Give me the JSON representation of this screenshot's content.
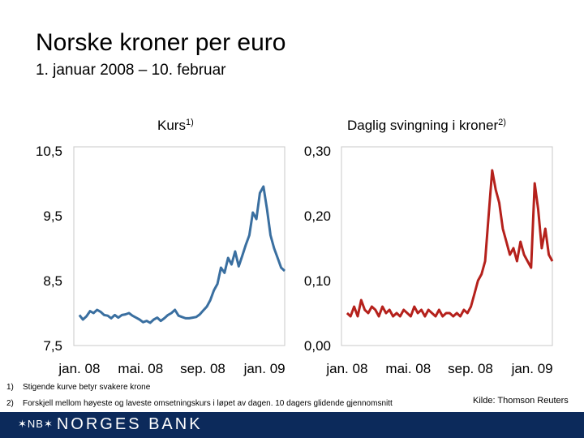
{
  "title": "Norske kroner per euro",
  "subtitle": "1. januar 2008 – 10. februar",
  "panels": {
    "left_title": "Kurs",
    "left_sup": "1)",
    "right_title": "Daglig svingning i kroner",
    "right_sup": "2)"
  },
  "footnotes": {
    "f1_num": "1)",
    "f1_text": "Stigende kurve betyr svakere krone",
    "f2_num": "2)",
    "f2_text": "Forskjell mellom høyeste og laveste omsetningskurs i løpet av dagen. 10 dagers glidende gjennomsnitt"
  },
  "source": "Kilde: Thomson Reuters",
  "logo": {
    "mark": "✶NB✶",
    "text": "NORGES BANK"
  },
  "colors": {
    "kurs": "#3a6fa0",
    "svingning": "#b5211c",
    "footer": "#0c2a5b",
    "grid": "#c8c8c8"
  },
  "chart_data": [
    {
      "type": "line",
      "title": "Kurs",
      "x_ticks": [
        "jan. 08",
        "mai. 08",
        "sep. 08",
        "jan. 09"
      ],
      "tick_dates": [
        "2008-01-01",
        "2008-05-01",
        "2008-09-01",
        "2009-01-01"
      ],
      "y_tick_labels": [
        "10,5",
        "9,5",
        "8,5",
        "7,5"
      ],
      "ylim": [
        7.5,
        10.5
      ],
      "xlim": [
        "2007-12-21",
        "2009-02-10"
      ],
      "grid": false,
      "series": [
        {
          "x": [
            "2008-01-01",
            "2008-01-08",
            "2008-01-15",
            "2008-01-22",
            "2008-01-29",
            "2008-02-05",
            "2008-02-12",
            "2008-02-19",
            "2008-02-26",
            "2008-03-04",
            "2008-03-11",
            "2008-03-18",
            "2008-03-25",
            "2008-04-01",
            "2008-04-08",
            "2008-04-15",
            "2008-04-22",
            "2008-04-29",
            "2008-05-06",
            "2008-05-13",
            "2008-05-20",
            "2008-05-27",
            "2008-06-03",
            "2008-06-10",
            "2008-06-17",
            "2008-06-24",
            "2008-07-01",
            "2008-07-08",
            "2008-07-15",
            "2008-07-22",
            "2008-07-29",
            "2008-08-05",
            "2008-08-12",
            "2008-08-19",
            "2008-08-26",
            "2008-09-02",
            "2008-09-09",
            "2008-09-16",
            "2008-09-23",
            "2008-09-30",
            "2008-10-07",
            "2008-10-14",
            "2008-10-21",
            "2008-10-28",
            "2008-11-04",
            "2008-11-11",
            "2008-11-18",
            "2008-11-25",
            "2008-12-02",
            "2008-12-09",
            "2008-12-16",
            "2008-12-23",
            "2008-12-30",
            "2009-01-06",
            "2009-01-13",
            "2009-01-20",
            "2009-01-27",
            "2009-02-03",
            "2009-02-10"
          ],
          "values": [
            7.97,
            7.9,
            7.95,
            8.03,
            8.0,
            8.05,
            8.02,
            7.97,
            7.96,
            7.92,
            7.97,
            7.93,
            7.97,
            7.98,
            8.0,
            7.96,
            7.93,
            7.9,
            7.86,
            7.88,
            7.85,
            7.9,
            7.93,
            7.88,
            7.92,
            7.97,
            8.0,
            8.05,
            7.96,
            7.94,
            7.92,
            7.92,
            7.93,
            7.94,
            7.98,
            8.04,
            8.1,
            8.2,
            8.35,
            8.45,
            8.7,
            8.62,
            8.85,
            8.75,
            8.95,
            8.72,
            8.88,
            9.05,
            9.2,
            9.55,
            9.45,
            9.85,
            9.95,
            9.6,
            9.2,
            9.0,
            8.85,
            8.7,
            8.65
          ]
        }
      ]
    },
    {
      "type": "line",
      "title": "Daglig svingning i kroner",
      "x_ticks": [
        "jan. 08",
        "mai. 08",
        "sep. 08",
        "jan. 09"
      ],
      "tick_dates": [
        "2008-01-01",
        "2008-05-01",
        "2008-09-01",
        "2009-01-01"
      ],
      "y_tick_labels": [
        "0,30",
        "0,20",
        "0,10",
        "0,00"
      ],
      "ylim": [
        0.0,
        0.3
      ],
      "xlim": [
        "2007-12-21",
        "2009-02-10"
      ],
      "grid": false,
      "series": [
        {
          "x": [
            "2008-01-01",
            "2008-01-08",
            "2008-01-15",
            "2008-01-22",
            "2008-01-29",
            "2008-02-05",
            "2008-02-12",
            "2008-02-19",
            "2008-02-26",
            "2008-03-04",
            "2008-03-11",
            "2008-03-18",
            "2008-03-25",
            "2008-04-01",
            "2008-04-08",
            "2008-04-15",
            "2008-04-22",
            "2008-04-29",
            "2008-05-06",
            "2008-05-13",
            "2008-05-20",
            "2008-05-27",
            "2008-06-03",
            "2008-06-10",
            "2008-06-17",
            "2008-06-24",
            "2008-07-01",
            "2008-07-08",
            "2008-07-15",
            "2008-07-22",
            "2008-07-29",
            "2008-08-05",
            "2008-08-12",
            "2008-08-19",
            "2008-08-26",
            "2008-09-02",
            "2008-09-09",
            "2008-09-16",
            "2008-09-23",
            "2008-09-30",
            "2008-10-07",
            "2008-10-14",
            "2008-10-21",
            "2008-10-28",
            "2008-11-04",
            "2008-11-11",
            "2008-11-18",
            "2008-11-25",
            "2008-12-02",
            "2008-12-09",
            "2008-12-16",
            "2008-12-23",
            "2008-12-30",
            "2009-01-06",
            "2009-01-13",
            "2009-01-20",
            "2009-01-27",
            "2009-02-03",
            "2009-02-10"
          ],
          "values": [
            0.05,
            0.045,
            0.06,
            0.045,
            0.07,
            0.055,
            0.05,
            0.06,
            0.055,
            0.045,
            0.06,
            0.05,
            0.055,
            0.045,
            0.05,
            0.045,
            0.055,
            0.05,
            0.045,
            0.06,
            0.05,
            0.055,
            0.045,
            0.055,
            0.05,
            0.045,
            0.055,
            0.045,
            0.05,
            0.05,
            0.045,
            0.05,
            0.045,
            0.055,
            0.05,
            0.06,
            0.08,
            0.1,
            0.11,
            0.13,
            0.2,
            0.27,
            0.24,
            0.22,
            0.18,
            0.16,
            0.14,
            0.15,
            0.13,
            0.16,
            0.14,
            0.13,
            0.12,
            0.25,
            0.21,
            0.15,
            0.18,
            0.14,
            0.13
          ]
        }
      ]
    }
  ]
}
